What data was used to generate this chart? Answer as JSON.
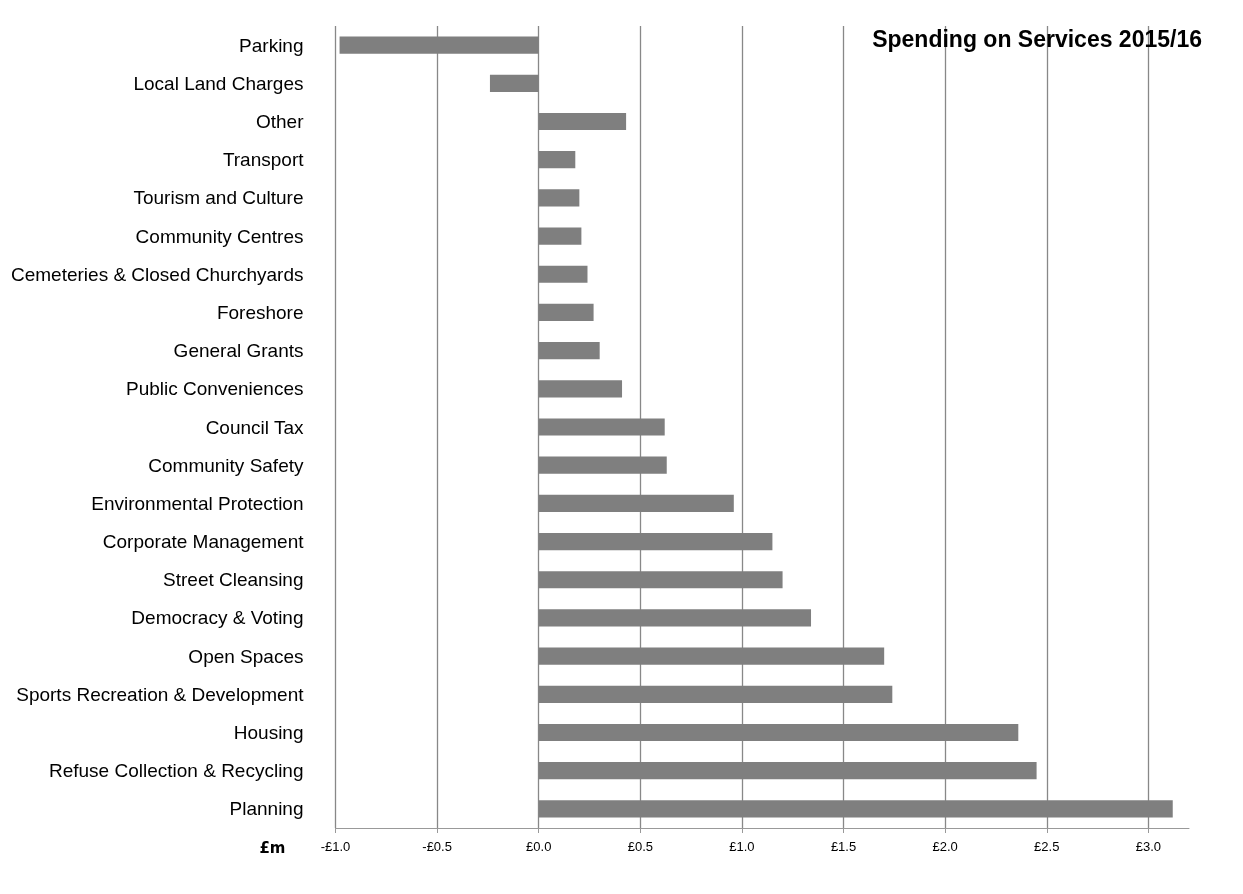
{
  "chart_data": {
    "type": "bar",
    "orientation": "horizontal",
    "title": "Spending on Services 2015/16",
    "xlabel": "£m",
    "categories": [
      "Parking",
      "Local Land Charges",
      "Other",
      "Transport",
      "Tourism and Culture",
      "Community Centres",
      "Cemeteries & Closed Churchyards",
      "Foreshore",
      "General Grants",
      "Public Conveniences",
      "Council Tax",
      "Community Safety",
      "Environmental Protection",
      "Corporate Management",
      "Street Cleansing",
      "Democracy & Voting",
      "Open Spaces",
      "Sports Recreation & Development",
      "Housing",
      "Refuse Collection & Recycling",
      "Planning"
    ],
    "values": [
      -0.98,
      -0.24,
      0.43,
      0.18,
      0.2,
      0.21,
      0.24,
      0.27,
      0.3,
      0.41,
      0.62,
      0.63,
      0.96,
      1.15,
      1.2,
      1.34,
      1.7,
      1.74,
      2.36,
      2.45,
      3.12
    ],
    "color": "#7f7f7f",
    "xlim": [
      -1,
      3.2
    ],
    "xticks": [
      {
        "value": -1,
        "label": "-£1.0"
      },
      {
        "value": -0.5,
        "label": "-£0.5"
      },
      {
        "value": 0,
        "label": "£0.0"
      },
      {
        "value": 0.5,
        "label": "£0.5"
      },
      {
        "value": 1,
        "label": "£1.0"
      },
      {
        "value": 1.5,
        "label": "£1.5"
      },
      {
        "value": 2,
        "label": "£2.0"
      },
      {
        "value": 2.5,
        "label": "£2.5"
      },
      {
        "value": 3,
        "label": "£3.0"
      }
    ],
    "grid": "x"
  }
}
